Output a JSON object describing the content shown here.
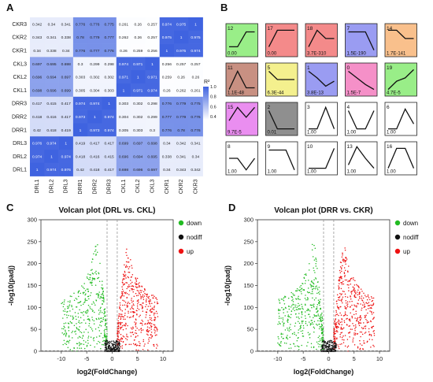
{
  "panels": {
    "a": "A",
    "b": "B",
    "c": "C",
    "d": "D"
  },
  "chart_data": [
    {
      "type": "heatmap",
      "rows": [
        "CKR3",
        "CKR2",
        "CKR1",
        "CKL3",
        "CKL2",
        "CKL1",
        "DRR3",
        "DRR2",
        "DRR1",
        "DRL3",
        "DRL2",
        "DRL1"
      ],
      "cols": [
        "DRL1",
        "DRL2",
        "DRL3",
        "DRR1",
        "DRR2",
        "DRR3",
        "CKL1",
        "CKL2",
        "CKL3",
        "CKR1",
        "CKR2",
        "CKR3"
      ],
      "values": [
        [
          0.342,
          0.34,
          0.341,
          0.776,
          0.776,
          0.775,
          0.261,
          0.26,
          0.257,
          0.974,
          0.975,
          1
        ],
        [
          0.343,
          0.341,
          0.338,
          0.78,
          0.779,
          0.777,
          0.262,
          0.26,
          0.257,
          0.975,
          1,
          0.975
        ],
        [
          0.34,
          0.338,
          0.34,
          0.776,
          0.777,
          0.776,
          0.26,
          0.259,
          0.256,
          1,
          0.975,
          0.974
        ],
        [
          0.697,
          0.695,
          0.698,
          0.3,
          0.299,
          0.298,
          0.974,
          0.971,
          1,
          0.256,
          0.257,
          0.257
        ],
        [
          0.696,
          0.694,
          0.697,
          0.303,
          0.302,
          0.302,
          0.971,
          1,
          0.971,
          0.259,
          0.26,
          0.26
        ],
        [
          0.698,
          0.696,
          0.699,
          0.305,
          0.304,
          0.303,
          1,
          0.971,
          0.974,
          0.26,
          0.262,
          0.261
        ],
        [
          0.417,
          0.415,
          0.417,
          0.974,
          0.974,
          1,
          0.303,
          0.302,
          0.298,
          0.776,
          0.779,
          0.775
        ],
        [
          0.418,
          0.416,
          0.417,
          0.973,
          1,
          0.974,
          0.304,
          0.302,
          0.299,
          0.777,
          0.779,
          0.776
        ],
        [
          0.42,
          0.418,
          0.419,
          1,
          0.973,
          0.974,
          0.305,
          0.303,
          0.3,
          0.776,
          0.78,
          0.776
        ],
        [
          0.976,
          0.974,
          1,
          0.419,
          0.417,
          0.417,
          0.699,
          0.697,
          0.698,
          0.34,
          0.342,
          0.341
        ],
        [
          0.974,
          1,
          0.974,
          0.418,
          0.416,
          0.415,
          0.696,
          0.694,
          0.695,
          0.338,
          0.341,
          0.34
        ],
        [
          1,
          0.974,
          0.976,
          0.42,
          0.418,
          0.417,
          0.698,
          0.696,
          0.697,
          0.34,
          0.343,
          0.342
        ]
      ],
      "legend_title": "R²",
      "legend_ticks": [
        "1.0",
        "0.8",
        "0.6",
        "0.4"
      ],
      "range": [
        0.25,
        1.0
      ],
      "colors": {
        "low": "#ffffff",
        "high": "#3f63e0"
      }
    },
    {
      "type": "line",
      "clusters": [
        {
          "id": "12",
          "p": "0.00",
          "color": "#99ee88",
          "profile": [
            0.3,
            0.3,
            0.75,
            0.75
          ]
        },
        {
          "id": "17",
          "p": "0.00",
          "color": "#f48a8a",
          "profile": [
            0.3,
            0.8,
            0.8,
            0.8
          ]
        },
        {
          "id": "18",
          "p": "3.7E-310",
          "color": "#f48a8a",
          "profile": [
            0.3,
            0.8,
            0.55,
            0.55
          ]
        },
        {
          "id": "7",
          "p": "1.5E-190",
          "color": "#9a9cf2",
          "profile": [
            0.75,
            0.75,
            0.75,
            0.2
          ]
        },
        {
          "id": "14",
          "p": "1.7E-141",
          "color": "#f9c08c",
          "profile": [
            0.8,
            0.8,
            0.55,
            0.55
          ]
        },
        {
          "id": "11",
          "p": "1.1E-48",
          "color": "#c89082",
          "profile": [
            0.2,
            0.75,
            0.25,
            0.25
          ]
        },
        {
          "id": "5",
          "p": "6.3E-44",
          "color": "#f4f08e",
          "profile": [
            0.75,
            0.5,
            0.5,
            0.5
          ]
        },
        {
          "id": "1",
          "p": "3.8E-13",
          "color": "#9a9cf2",
          "profile": [
            0.75,
            0.55,
            0.3,
            0.45
          ]
        },
        {
          "id": "0",
          "p": "1.5E-7",
          "color": "#f590c8",
          "profile": [
            0.75,
            0.55,
            0.35,
            0.2
          ]
        },
        {
          "id": "19",
          "p": "4.7E-5",
          "color": "#99ee88",
          "profile": [
            0.2,
            0.45,
            0.55,
            0.8
          ]
        },
        {
          "id": "15",
          "p": "9.7E-5",
          "color": "#ea8ef0",
          "profile": [
            0.45,
            0.85,
            0.55,
            0.85
          ]
        },
        {
          "id": "2",
          "p": "0.01",
          "color": "#8f8f8f",
          "profile": [
            0.75,
            0.2,
            0.2,
            0.2
          ]
        },
        {
          "id": "3",
          "p": "1.00",
          "color": "#ffffff",
          "profile": [
            0.2,
            0.2,
            0.85,
            0.2
          ]
        },
        {
          "id": "4",
          "p": "1.00",
          "color": "#ffffff",
          "profile": [
            0.75,
            0.2,
            0.2,
            0.75
          ]
        },
        {
          "id": "6",
          "p": "1.00",
          "color": "#ffffff",
          "profile": [
            0.2,
            0.2,
            0.8,
            0.35
          ]
        },
        {
          "id": "8",
          "p": "1.00",
          "color": "#ffffff",
          "profile": [
            0.5,
            0.5,
            0.15,
            0.5
          ]
        },
        {
          "id": "9",
          "p": "1.00",
          "color": "#ffffff",
          "profile": [
            0.75,
            0.75,
            0.75,
            0.15
          ]
        },
        {
          "id": "10",
          "p": "1.00",
          "color": "#ffffff",
          "profile": [
            0.2,
            0.2,
            0.2,
            0.8
          ]
        },
        {
          "id": "13",
          "p": "1.00",
          "color": "#ffffff",
          "profile": [
            0.3,
            0.85,
            0.5,
            0.2
          ]
        },
        {
          "id": "16",
          "p": "1.00",
          "color": "#ffffff",
          "profile": [
            0.2,
            0.8,
            0.8,
            0.2
          ]
        }
      ]
    },
    {
      "type": "scatter",
      "title": "Volcan plot (DRL vs. CKL)",
      "xlabel": "log2(FoldChange)",
      "ylabel": "-log10(padj)",
      "xlim": [
        -14,
        12
      ],
      "ylim": [
        0,
        300
      ],
      "xticks": [
        "-10",
        "-5",
        "0",
        "5",
        "10"
      ],
      "yticks": [
        "0",
        "50",
        "100",
        "150",
        "200",
        "250",
        "300"
      ],
      "legend": [
        "down",
        "nodiff",
        "up"
      ],
      "colors": {
        "down": "#22bb22",
        "nodiff": "#111111",
        "up": "#ee1111"
      }
    },
    {
      "type": "scatter",
      "title": "Volcan plot (DRR vs. CKR)",
      "xlabel": "log2(FoldChange)",
      "ylabel": "-log10(padj)",
      "xlim": [
        -14,
        12
      ],
      "ylim": [
        0,
        300
      ],
      "xticks": [
        "-10",
        "-5",
        "0",
        "5",
        "10"
      ],
      "yticks": [
        "0",
        "50",
        "100",
        "150",
        "200",
        "250",
        "300"
      ],
      "legend": [
        "down",
        "nodiff",
        "up"
      ],
      "colors": {
        "down": "#22bb22",
        "nodiff": "#111111",
        "up": "#ee1111"
      }
    }
  ]
}
